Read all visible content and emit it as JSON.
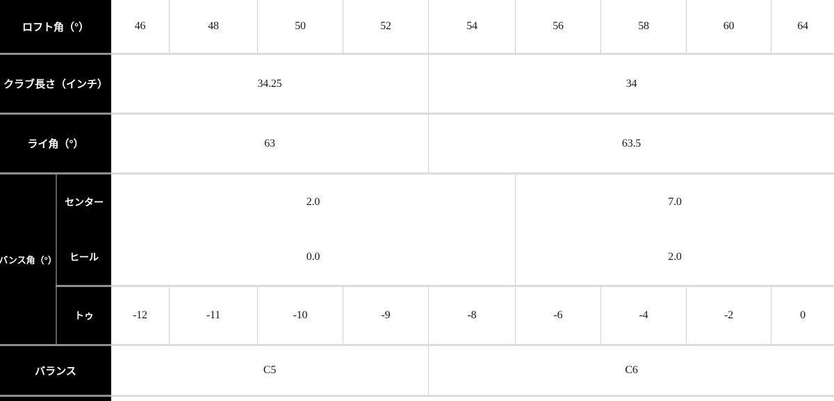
{
  "colors": {
    "header_bg": "#000000",
    "header_text": "#ffffff",
    "value_text": "#18181c",
    "grid_line": "#d0d0d0",
    "separator_over_black": "#8f8f8f",
    "separator_over_white": "#dcdcdc"
  },
  "table": {
    "loft": {
      "label": "ロフト角（°）",
      "values": [
        "46",
        "48",
        "50",
        "52",
        "54",
        "56",
        "58",
        "60",
        "64"
      ]
    },
    "length": {
      "label": "クラブ長さ（インチ）",
      "groups": [
        {
          "value": "34.25",
          "span": 4
        },
        {
          "value": "34",
          "span": 5
        }
      ]
    },
    "lie": {
      "label": "ライ角（°）",
      "groups": [
        {
          "value": "63",
          "span": 4
        },
        {
          "value": "63.5",
          "span": 5
        }
      ]
    },
    "bounce": {
      "label": "バンス角（°）",
      "center": {
        "label": "センター",
        "groups": [
          {
            "value": "2.0",
            "span": 5
          },
          {
            "value": "7.0",
            "span": 4
          }
        ]
      },
      "heel": {
        "label": "ヒール",
        "groups": [
          {
            "value": "0.0",
            "span": 5
          },
          {
            "value": "2.0",
            "span": 4
          }
        ]
      },
      "toe": {
        "label": "トゥ",
        "values": [
          "-12",
          "-11",
          "-10",
          "-9",
          "-8",
          "-6",
          "-4",
          "-2",
          "0"
        ]
      }
    },
    "balance": {
      "label": "バランス",
      "groups": [
        {
          "value": "C5",
          "span": 4
        },
        {
          "value": "C6",
          "span": 5
        }
      ]
    }
  }
}
